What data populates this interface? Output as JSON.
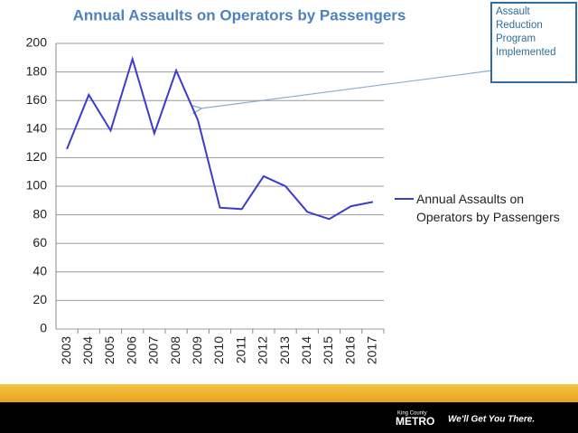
{
  "chart_data": {
    "type": "line",
    "title": "Annual Assaults on Operators by Passengers",
    "annotation": "Assault Reduction Program Implemented",
    "categories": [
      "2003",
      "2004",
      "2005",
      "2006",
      "2007",
      "2008",
      "2009",
      "2010",
      "2011",
      "2012",
      "2013",
      "2014",
      "2015",
      "2016",
      "2017"
    ],
    "series": [
      {
        "name": "Annual Assaults on Operators by Passengers",
        "color": "#3b3bd0",
        "values": [
          126,
          164,
          139,
          189,
          137,
          181,
          146,
          85,
          84,
          107,
          100,
          82,
          77,
          86,
          89
        ]
      }
    ],
    "ylim": [
      0,
      200
    ],
    "yticks": [
      0,
      20,
      40,
      60,
      80,
      100,
      120,
      140,
      160,
      180,
      200
    ],
    "grid": true,
    "legend": "right"
  },
  "footer": {
    "logo_top": "King County",
    "logo": "METRO",
    "slogan": "We'll Get You There."
  }
}
